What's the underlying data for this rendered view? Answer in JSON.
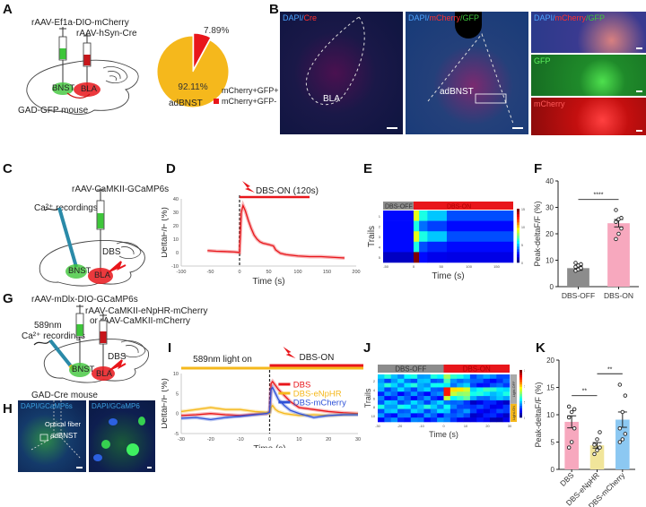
{
  "panels": {
    "A": {
      "label": "A",
      "virus1": "rAAV-Ef1a-DIO-mCherry",
      "virus2": "rAAV-hSyn-Cre",
      "region1": "BNST",
      "region2": "BLA",
      "mouse": "GAD-GFP mouse",
      "pie_region": "adBNST"
    },
    "B": {
      "label": "B",
      "img1_label_a": "DAPI/",
      "img1_label_b": "Cre",
      "img1_region": "BLA",
      "img2_label_a": "DAPI/",
      "img2_label_b": "mCherry",
      "img2_label_c": "/GFP",
      "img2_region": "adBNST",
      "img3_label_a": "DAPI/",
      "img3_label_b": "mCherry",
      "img3_label_c": "/GFP",
      "img4_label": "GFP",
      "img5_label": "mCherry"
    },
    "C": {
      "label": "C",
      "virus": "rAAV-CaMKII-GCaMP6s",
      "recording": "Ca²⁺ recordings",
      "region1": "BNST",
      "region2": "BLA",
      "stim": "DBS"
    },
    "D": {
      "label": "D"
    },
    "E": {
      "label": "E"
    },
    "F": {
      "label": "F"
    },
    "G": {
      "label": "G",
      "virus1": "rAAV-mDlx-DIO-GCaMP6s",
      "virus2": "rAAV-CaMKII-eNpHR-mCherry",
      "virus3": "or rAAV-CaMKII-mCherry",
      "light": "589nm",
      "recording": "Ca²⁺ recordings",
      "region1": "BNST",
      "region2": "BLA",
      "stim": "DBS",
      "mouse": "GAD-Cre mouse"
    },
    "H": {
      "label": "H",
      "img1_label": "DAPI/GCaMP6s",
      "img1_fiber": "Optical fiber",
      "img1_region": "adBNST",
      "img2_label": "DAPI/GCaMP6"
    },
    "I": {
      "label": "I"
    },
    "J": {
      "label": "J"
    },
    "K": {
      "label": "K"
    }
  },
  "colors": {
    "orange": "#f5b81c",
    "red": "#e8161b",
    "green": "#3ec63a",
    "blue": "#2e52d8",
    "pink": "#f7a8be",
    "gray": "#8c8c8c",
    "yellow": "#f1e59a",
    "lightblue": "#8cc8f2"
  },
  "chart_data": [
    {
      "id": "A-pie",
      "type": "pie",
      "title": "adBNST",
      "slices": [
        {
          "label": "mCherry+GFP+",
          "value": 92.11,
          "text": "92.11%",
          "color": "#f5b81c"
        },
        {
          "label": "mCherry+GFP-",
          "value": 7.89,
          "text": "7.89%",
          "color": "#e8161b"
        }
      ],
      "legend": "bottom-right"
    },
    {
      "id": "D-line",
      "type": "line",
      "xlabel": "Time (s)",
      "ylabel": "DeltaF/F (%)",
      "xlim": [
        -100,
        200
      ],
      "ylim": [
        -10,
        40
      ],
      "xticks": [
        -100,
        -50,
        0,
        50,
        100,
        150,
        200
      ],
      "yticks": [
        -10,
        0,
        10,
        20,
        30,
        40
      ],
      "annotation": "DBS-ON (120s)",
      "stim_start": 0,
      "stim_end": 120,
      "series": [
        {
          "name": "DBS",
          "color": "#e8161b",
          "x": [
            -55,
            -40,
            -25,
            -10,
            -2,
            0,
            3,
            6,
            10,
            15,
            20,
            25,
            30,
            35,
            40,
            50,
            58,
            62,
            70,
            80,
            100,
            120,
            140,
            160,
            180
          ],
          "y": [
            1.5,
            1.0,
            0.8,
            0.5,
            0.2,
            0,
            30,
            35,
            31,
            24,
            18,
            13,
            10,
            8,
            7,
            6,
            5,
            2,
            -0.5,
            -1.5,
            -2.5,
            -3,
            -3,
            -3.5,
            -4
          ]
        }
      ]
    },
    {
      "id": "E-heatmap",
      "type": "heatmap",
      "xlabel": "Time (s)",
      "ylabel": "Trails",
      "xticks": [
        -50,
        0,
        50,
        100,
        150
      ],
      "yticks": [
        1,
        2,
        3,
        4,
        5
      ],
      "bar_off": "DBS-OFF",
      "bar_on": "DBS-ON",
      "colorbar_ticks": [
        0,
        5,
        10,
        15
      ],
      "xlim": [
        -55,
        180
      ],
      "rows": [
        {
          "trial": 1,
          "pre": 2,
          "peak": 9,
          "post1": 6,
          "post2": 3
        },
        {
          "trial": 2,
          "pre": 2,
          "peak": 6,
          "post1": 3.5,
          "post2": 2
        },
        {
          "trial": 3,
          "pre": 2,
          "peak": 9,
          "post1": 6,
          "post2": 3
        },
        {
          "trial": 4,
          "pre": 2,
          "peak": 6,
          "post1": 3,
          "post2": 2
        },
        {
          "trial": 5,
          "pre": 1,
          "peak": 15,
          "post1": 2,
          "post2": 1.5
        }
      ]
    },
    {
      "id": "F-bar",
      "type": "bar",
      "ylabel": "Peak-deltaF/F (%)",
      "ylim": [
        0,
        40
      ],
      "yticks": [
        0,
        10,
        20,
        30,
        40
      ],
      "categories": [
        "DBS-OFF",
        "DBS-ON"
      ],
      "values": [
        7,
        24
      ],
      "errors": [
        0.8,
        1.4
      ],
      "colors": [
        "#8c8c8c",
        "#f7a8be"
      ],
      "points": [
        [
          6,
          6.5,
          7,
          7.5,
          8,
          8.5,
          9
        ],
        [
          18,
          20,
          22,
          24.5,
          25.5,
          26,
          29
        ]
      ],
      "significance": [
        {
          "pair": [
            0,
            1
          ],
          "text": "****"
        }
      ]
    },
    {
      "id": "I-line",
      "type": "line",
      "xlabel": "Time (s)",
      "ylabel": "DeltaF/F (%)",
      "xlim": [
        -30,
        30
      ],
      "ylim": [
        -5,
        10
      ],
      "xticks": [
        -30,
        -20,
        -10,
        0,
        10,
        20,
        30
      ],
      "yticks": [
        -5,
        0,
        5,
        10
      ],
      "annotation_light": "589nm light on",
      "annotation_dbs": "DBS-ON",
      "legend": "top-right",
      "series": [
        {
          "name": "DBS",
          "color": "#e8161b",
          "x": [
            -30,
            -25,
            -20,
            -15,
            -10,
            -5,
            -1,
            0,
            0.5,
            1,
            2,
            3,
            5,
            7,
            10,
            15,
            20,
            25,
            30
          ],
          "y": [
            -0.5,
            -0.3,
            0,
            -0.3,
            -0.5,
            -0.2,
            0,
            0.5,
            7.5,
            8,
            7,
            6,
            4.5,
            3,
            1.5,
            1,
            0.5,
            0.2,
            0
          ]
        },
        {
          "name": "DBS-eNpHR",
          "color": "#f5b81c",
          "x": [
            -30,
            -25,
            -20,
            -15,
            -10,
            -5,
            -1,
            0,
            0.5,
            1,
            2,
            3,
            5,
            7,
            10,
            15,
            20,
            25,
            30
          ],
          "y": [
            0.5,
            1,
            1.5,
            1,
            1,
            0.5,
            0.3,
            0,
            1.5,
            2,
            1,
            0.5,
            0,
            -0.2,
            -0.5,
            -0.3,
            -0.5,
            -0.3,
            -0.2
          ]
        },
        {
          "name": "DBS-mCherry",
          "color": "#2e52d8",
          "x": [
            -30,
            -25,
            -20,
            -15,
            -10,
            -5,
            -1,
            0,
            0.5,
            1,
            2,
            3,
            5,
            7,
            10,
            15,
            20,
            25,
            30
          ],
          "y": [
            -1.2,
            -1,
            -1.5,
            -1,
            -0.7,
            -0.3,
            0,
            0.3,
            6,
            6.5,
            5,
            3.5,
            2,
            0.8,
            0,
            -1,
            -0.5,
            -0.3,
            -0.3
          ]
        }
      ]
    },
    {
      "id": "J-heatmap",
      "type": "heatmap",
      "xlabel": "Time (s)",
      "ylabel": "Trails",
      "xticks": [
        -30,
        -20,
        -10,
        0,
        10,
        20,
        30
      ],
      "yticks": [
        2,
        4,
        6,
        8,
        10
      ],
      "bar_off": "DBS-OFF",
      "bar_on": "DBS-ON",
      "side_top": "Light-OFF",
      "side_bottom": "Light-ON",
      "colorbar_ticks": [
        0,
        5,
        10,
        15
      ],
      "rows": [
        {
          "trial": 1,
          "pre": 5,
          "post": 8
        },
        {
          "trial": 2,
          "pre": 4,
          "post": 6
        },
        {
          "trial": 3,
          "pre": 5,
          "post": 6
        },
        {
          "trial": 4,
          "pre": 4,
          "post": 13
        },
        {
          "trial": 5,
          "pre": 3,
          "post": 12
        },
        {
          "trial": 6,
          "pre": 3,
          "post": 9
        },
        {
          "trial": 7,
          "pre": 4,
          "post": 4
        },
        {
          "trial": 8,
          "pre": 5,
          "post": 5
        },
        {
          "trial": 9,
          "pre": 4,
          "post": 5
        },
        {
          "trial": 10,
          "pre": 3,
          "post": 4
        },
        {
          "trial": 11,
          "pre": 3,
          "post": 3
        }
      ]
    },
    {
      "id": "K-bar",
      "type": "bar",
      "ylabel": "Peak-deltaF/F (%)",
      "ylim": [
        0,
        20
      ],
      "yticks": [
        0,
        5,
        10,
        15,
        20
      ],
      "categories": [
        "DBS",
        "DBS-eNpHR",
        "DBS-mCherry"
      ],
      "values": [
        8.7,
        4.4,
        9.1
      ],
      "errors": [
        1.1,
        0.5,
        1.4
      ],
      "colors": [
        "#f7a8be",
        "#f1e59a",
        "#8cc8f2"
      ],
      "points": [
        [
          4,
          5,
          7.5,
          9.5,
          10.5,
          11,
          11.5
        ],
        [
          2.8,
          3.5,
          4,
          4.5,
          5.5,
          6.8
        ],
        [
          5,
          5.5,
          6.5,
          7.5,
          10.5,
          13.5,
          15.5
        ]
      ],
      "significance": [
        {
          "pair": [
            0,
            1
          ],
          "text": "**"
        },
        {
          "pair": [
            1,
            2
          ],
          "text": "**"
        }
      ]
    }
  ]
}
